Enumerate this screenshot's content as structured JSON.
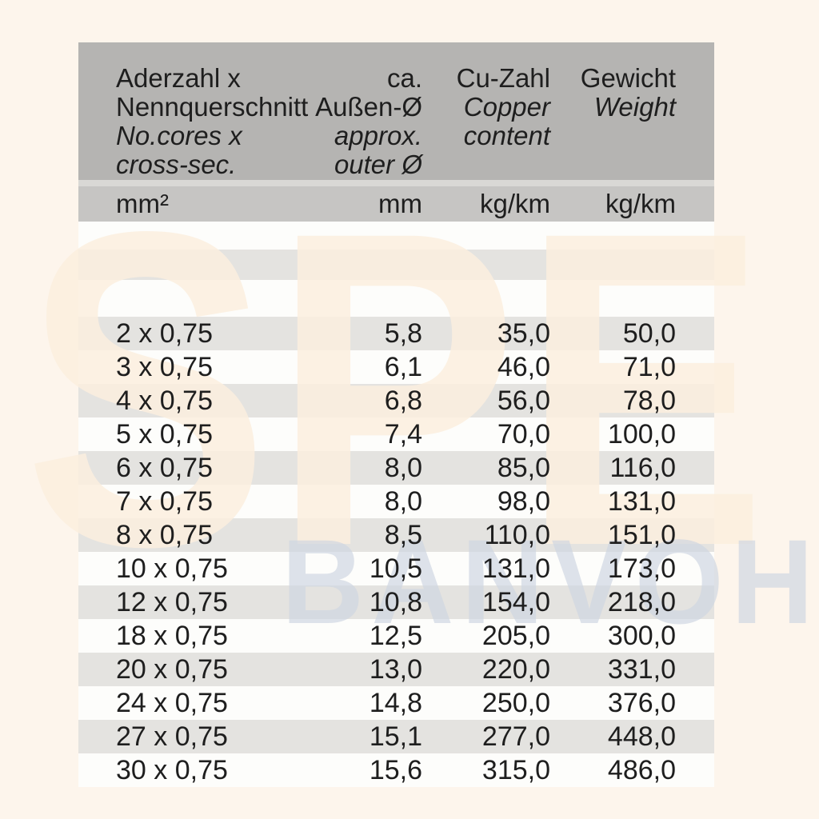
{
  "watermarks": {
    "large": "SPE",
    "small": "BANVOH"
  },
  "colors": {
    "page_bg": "#fdf5ec",
    "header_bg": "#b5b4b2",
    "units_bg": "#c6c5c3",
    "stripe_bg": "#e4e3e0",
    "row_white": "#fdfdfb",
    "text": "#1e1e1e",
    "watermark_large": "#fbeede",
    "watermark_small": "#dde2e9"
  },
  "table": {
    "header": {
      "lines": [
        {
          "c1": "Aderzahl x",
          "c2": "ca.",
          "c3": "Cu-Zahl",
          "c4": "Gewicht"
        },
        {
          "c1": "Nennquerschnitt",
          "c2": "Außen-Ø",
          "c3": "Copper",
          "c4": "Weight"
        },
        {
          "c1": "No.cores x",
          "c2": "approx.",
          "c3": "content",
          "c4": ""
        },
        {
          "c1": "cross-sec.",
          "c2": "outer Ø",
          "c3": "",
          "c4": ""
        }
      ]
    },
    "units": {
      "c1": "mm²",
      "c2": "mm",
      "c3": "kg/km",
      "c4": "kg/km"
    },
    "rows": [
      [
        "2 x 0,75",
        "5,8",
        "35,0",
        "50,0"
      ],
      [
        "3 x 0,75",
        "6,1",
        "46,0",
        "71,0"
      ],
      [
        "4 x 0,75",
        "6,8",
        "56,0",
        "78,0"
      ],
      [
        "5 x 0,75",
        "7,4",
        "70,0",
        "100,0"
      ],
      [
        "6 x 0,75",
        "8,0",
        "85,0",
        "116,0"
      ],
      [
        "7 x 0,75",
        "8,0",
        "98,0",
        "131,0"
      ],
      [
        "8 x 0,75",
        "8,5",
        "110,0",
        "151,0"
      ],
      [
        "10 x 0,75",
        "10,5",
        "131,0",
        "173,0"
      ],
      [
        "12 x 0,75",
        "10,8",
        "154,0",
        "218,0"
      ],
      [
        "18 x 0,75",
        "12,5",
        "205,0",
        "300,0"
      ],
      [
        "20 x 0,75",
        "13,0",
        "220,0",
        "331,0"
      ],
      [
        "24 x 0,75",
        "14,8",
        "250,0",
        "376,0"
      ],
      [
        "27 x 0,75",
        "15,1",
        "277,0",
        "448,0"
      ],
      [
        "30 x 0,75",
        "15,6",
        "315,0",
        "486,0"
      ]
    ]
  }
}
